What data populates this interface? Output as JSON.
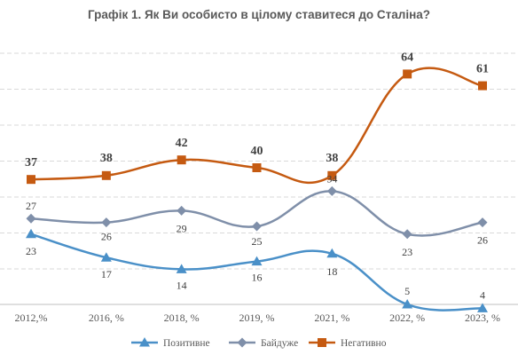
{
  "chart_data": {
    "type": "line",
    "title": "Графік 1. Як Ви особисто в цілому ставитеся до Сталіна?",
    "categories": [
      "2012,%",
      "2016, %",
      "2018, %",
      "2019, %",
      "2021, %",
      "2022, %",
      "2023, %"
    ],
    "ylim": [
      0,
      70
    ],
    "grid": true,
    "legend_position": "bottom",
    "series": [
      {
        "name": "Позитивне",
        "values": [
          23,
          17,
          14,
          16,
          18,
          5,
          4
        ],
        "color": "#4a90c8",
        "marker": "triangle",
        "label_bold": false,
        "label_color": "#404040"
      },
      {
        "name": "Байдуже",
        "values": [
          27,
          26,
          29,
          25,
          34,
          23,
          26
        ],
        "color": "#7f8fa9",
        "marker": "diamond",
        "label_bold": false,
        "label_color": "#404040"
      },
      {
        "name": "Негативно",
        "values": [
          37,
          38,
          42,
          40,
          38,
          64,
          61
        ],
        "color": "#c55a11",
        "marker": "square",
        "label_bold": true,
        "label_color": "#843c0c"
      }
    ]
  }
}
